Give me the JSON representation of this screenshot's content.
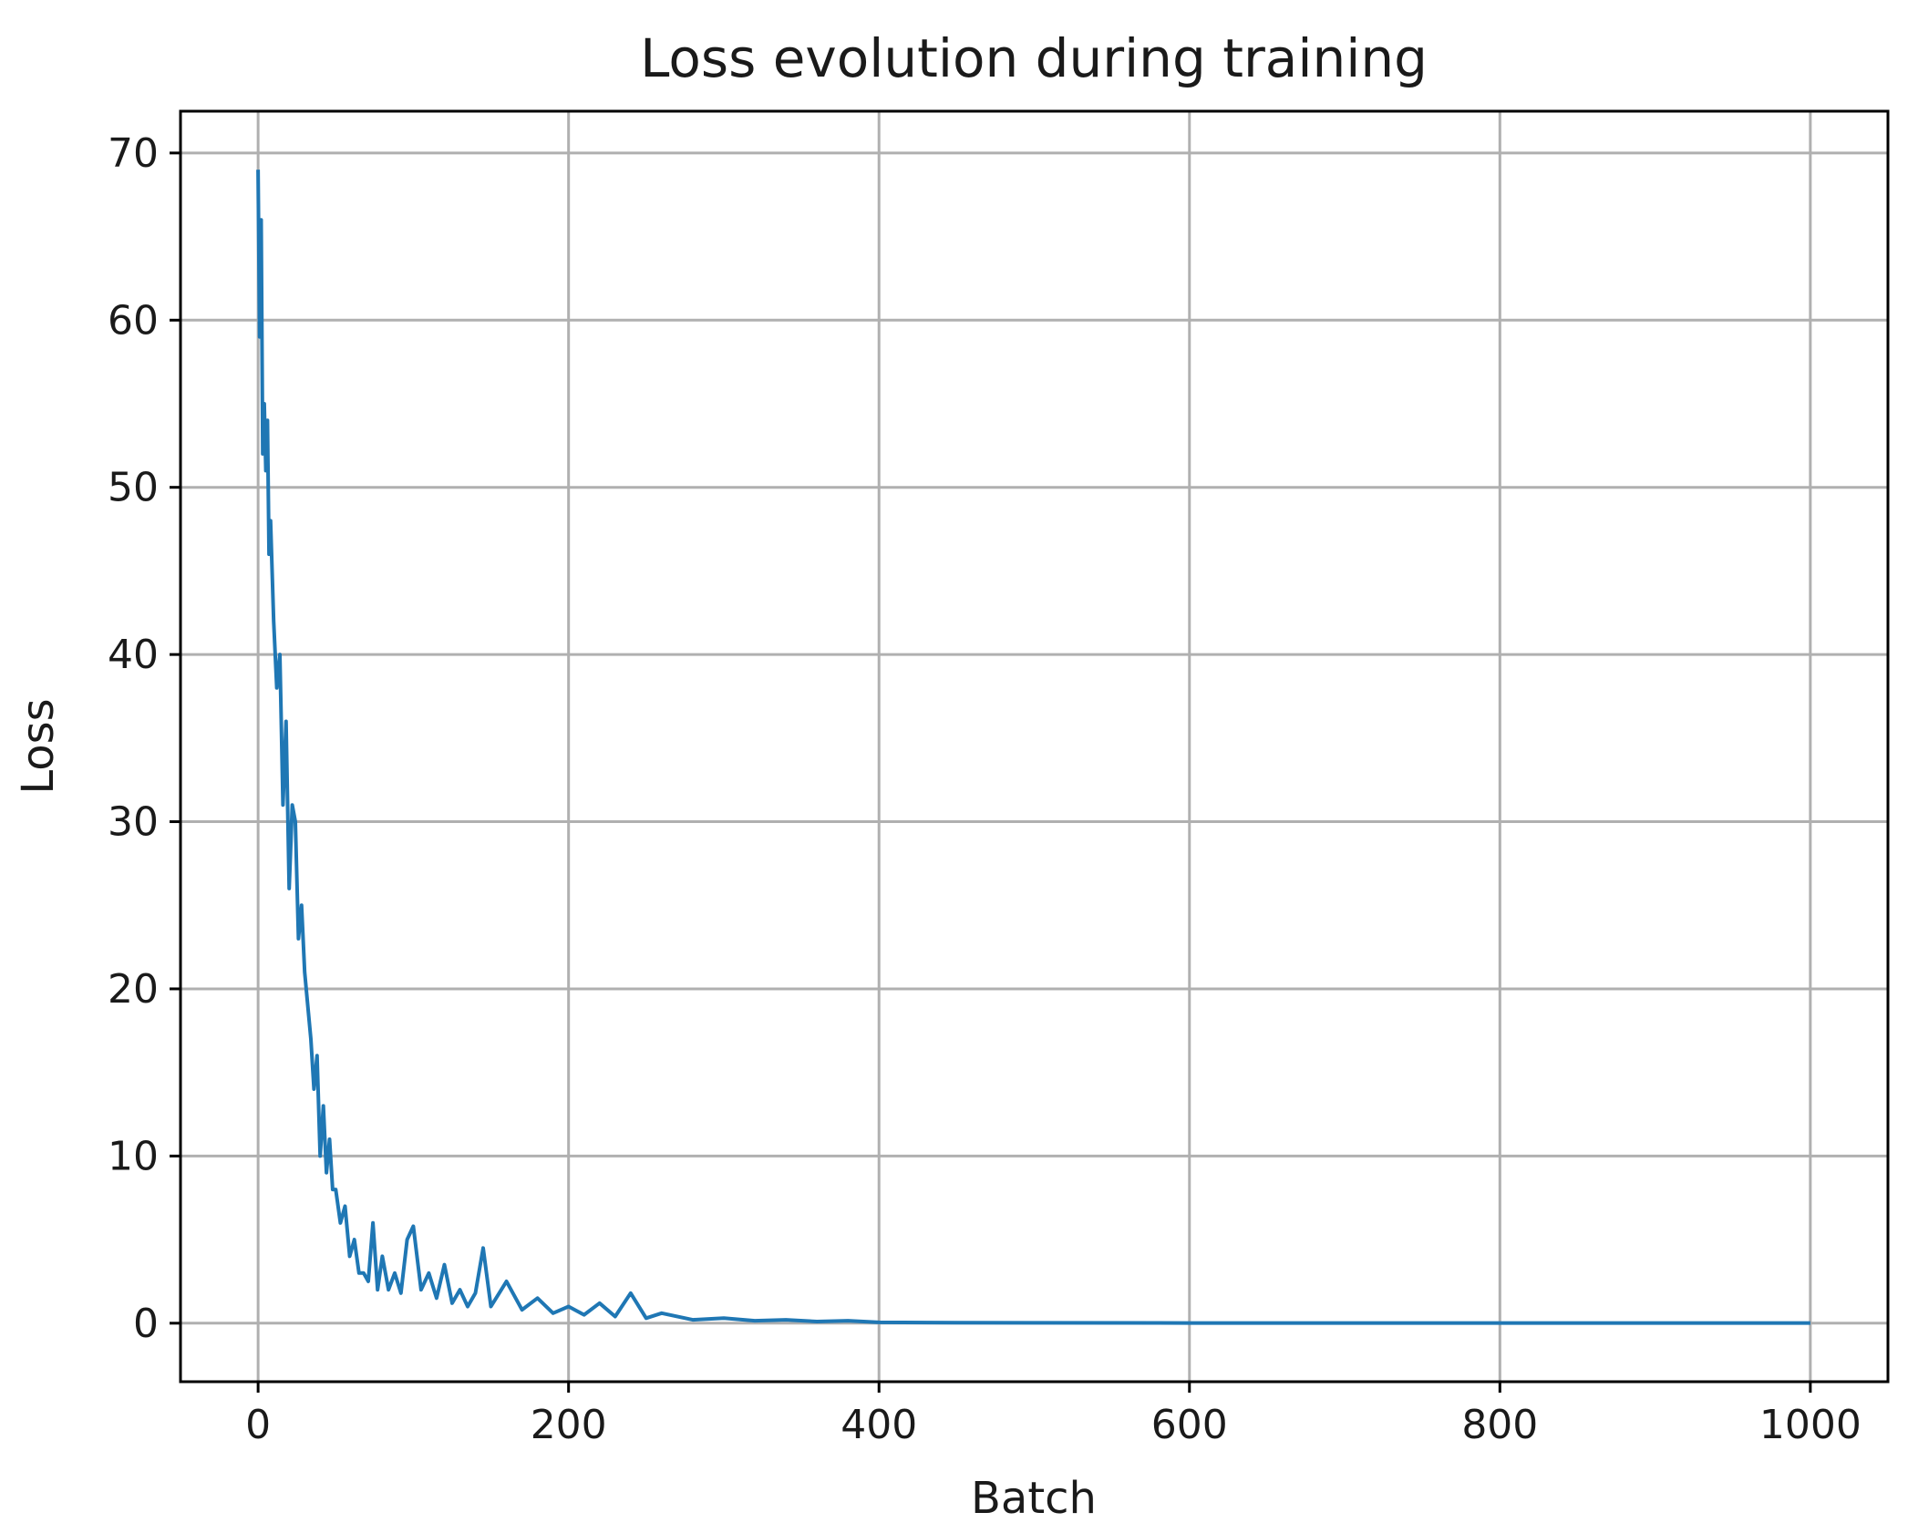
{
  "chart_data": {
    "type": "line",
    "title": "Loss evolution during training",
    "xlabel": "Batch",
    "ylabel": "Loss",
    "xlim": [
      -50,
      1050
    ],
    "ylim": [
      -3.5,
      72.5
    ],
    "xticks": [
      0,
      200,
      400,
      600,
      800,
      1000
    ],
    "yticks": [
      0,
      10,
      20,
      30,
      40,
      50,
      60,
      70
    ],
    "grid": true,
    "series": [
      {
        "color": "#1f77b4",
        "x": [
          0,
          1,
          2,
          3,
          4,
          5,
          6,
          7,
          8,
          10,
          12,
          14,
          16,
          18,
          20,
          22,
          24,
          26,
          28,
          30,
          32,
          34,
          36,
          38,
          40,
          42,
          44,
          46,
          48,
          50,
          53,
          56,
          59,
          62,
          65,
          68,
          71,
          74,
          77,
          80,
          84,
          88,
          92,
          96,
          100,
          105,
          110,
          115,
          120,
          125,
          130,
          135,
          140,
          145,
          150,
          160,
          170,
          180,
          190,
          200,
          210,
          220,
          230,
          240,
          250,
          260,
          280,
          300,
          320,
          340,
          360,
          380,
          400,
          450,
          500,
          600,
          700,
          800,
          900,
          1000
        ],
        "y": [
          69,
          59,
          66,
          52,
          55,
          51,
          54,
          46,
          48,
          42,
          38,
          40,
          31,
          36,
          26,
          31,
          30,
          23,
          25,
          21,
          19,
          17,
          14,
          16,
          10,
          13,
          9,
          11,
          8,
          8,
          6,
          7,
          4,
          5,
          3,
          3,
          2.5,
          6,
          2,
          4,
          2,
          3,
          1.8,
          5,
          5.8,
          2,
          3,
          1.5,
          3.5,
          1.2,
          2,
          1,
          1.8,
          4.5,
          1,
          2.5,
          0.8,
          1.5,
          0.6,
          1,
          0.5,
          1.2,
          0.4,
          1.8,
          0.3,
          0.6,
          0.2,
          0.3,
          0.15,
          0.2,
          0.1,
          0.15,
          0.05,
          0.03,
          0.02,
          0.01,
          0.01,
          0.01,
          0.01,
          0.01
        ]
      }
    ]
  }
}
